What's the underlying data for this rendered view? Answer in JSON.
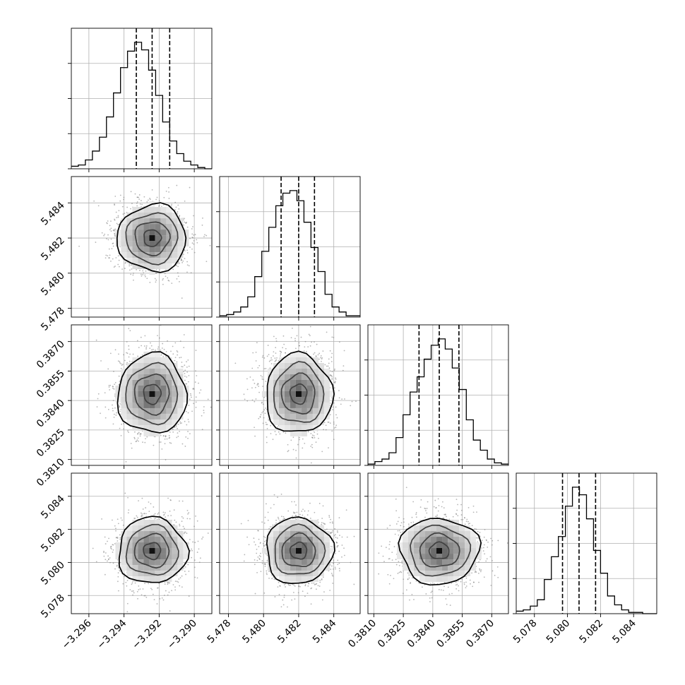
{
  "chart_data": {
    "type": "corner",
    "dimensions": 4,
    "parameters": [
      {
        "index": 0,
        "axis_range": [
          -3.297,
          -3.289
        ],
        "ticks": [
          "−3.296",
          "−3.294",
          "−3.292",
          "−3.290"
        ],
        "tick_values": [
          -3.296,
          -3.294,
          -3.292,
          -3.29
        ],
        "quantiles": [
          -3.2933,
          -3.2924,
          -3.2914
        ],
        "median": -3.2924,
        "sigma": 0.00098
      },
      {
        "index": 1,
        "axis_range": [
          5.4775,
          5.4855
        ],
        "ticks": [
          "5.478",
          "5.480",
          "5.482",
          "5.484"
        ],
        "tick_values": [
          5.478,
          5.48,
          5.482,
          5.484
        ],
        "quantiles": [
          5.481,
          5.482,
          5.4829
        ],
        "median": 5.482,
        "sigma": 0.00095
      },
      {
        "index": 2,
        "axis_range": [
          0.3807,
          0.38785
        ],
        "ticks": [
          "0.3810",
          "0.3825",
          "0.3840",
          "0.3855",
          "0.3870"
        ],
        "tick_values": [
          0.381,
          0.3825,
          0.384,
          0.3855,
          0.387
        ],
        "quantiles": [
          0.3833,
          0.38433,
          0.38533
        ],
        "median": 0.38433,
        "sigma": 0.00101
      },
      {
        "index": 3,
        "axis_range": [
          5.0769,
          5.0854
        ],
        "ticks": [
          "5.078",
          "5.080",
          "5.082",
          "5.084"
        ],
        "tick_values": [
          5.078,
          5.08,
          5.082,
          5.084
        ],
        "quantiles": [
          5.0797,
          5.0807,
          5.0817
        ],
        "median": 5.0807,
        "sigma": 0.001
      }
    ],
    "histograms": [
      {
        "param": 0,
        "bins": 20,
        "range": [
          -3.297,
          -3.289
        ],
        "counts": [
          2,
          3,
          7,
          14,
          25,
          41,
          60,
          80,
          93,
          100,
          94,
          78,
          58,
          37,
          22,
          12,
          6,
          3,
          1,
          0
        ]
      },
      {
        "param": 1,
        "bins": 20,
        "range": [
          5.4775,
          5.4855
        ],
        "counts": [
          1,
          2,
          4,
          8,
          16,
          32,
          52,
          71,
          88,
          98,
          100,
          92,
          75,
          55,
          36,
          18,
          8,
          4,
          1,
          1
        ]
      },
      {
        "param": 2,
        "bins": 20,
        "range": [
          0.3807,
          0.38785
        ],
        "counts": [
          1,
          3,
          5,
          10,
          22,
          40,
          58,
          70,
          84,
          95,
          100,
          92,
          77,
          60,
          36,
          20,
          12,
          5,
          2,
          1
        ]
      },
      {
        "param": 3,
        "bins": 20,
        "range": [
          5.0769,
          5.0854
        ],
        "counts": [
          2,
          3,
          6,
          11,
          27,
          45,
          61,
          85,
          100,
          94,
          75,
          50,
          32,
          14,
          7,
          3,
          1,
          1,
          0,
          0
        ]
      }
    ],
    "scatter": "2D sample density with contour levels at 0.5, 1, 1.5, 2 sigma",
    "grid": true,
    "title": "",
    "legend": ""
  }
}
